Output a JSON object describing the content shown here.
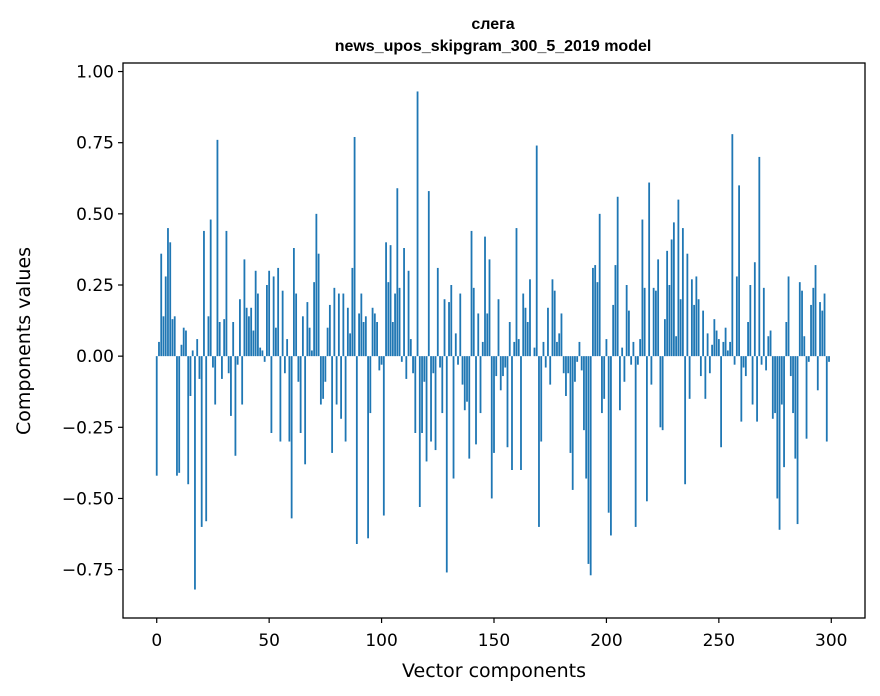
{
  "chart_data": {
    "type": "bar",
    "title": "слега",
    "subtitle": "news_upos_skipgram_300_5_2019 model",
    "xlabel": "Vector components",
    "ylabel": "Components values",
    "xlim": [
      -15,
      315
    ],
    "ylim": [
      -0.92,
      1.03
    ],
    "xticks": [
      0,
      50,
      100,
      150,
      200,
      250,
      300
    ],
    "yticks": [
      -0.75,
      -0.5,
      -0.25,
      0.0,
      0.25,
      0.5,
      0.75,
      1.0
    ],
    "xtick_labels": [
      "0",
      "50",
      "100",
      "150",
      "200",
      "250",
      "300"
    ],
    "ytick_labels": [
      "−0.75",
      "−0.50",
      "−0.25",
      "0.00",
      "0.25",
      "0.50",
      "0.75",
      "1.00"
    ],
    "bar_color": "#1f77b4",
    "grid": false,
    "values": [
      -0.42,
      0.05,
      0.36,
      0.14,
      0.28,
      0.45,
      0.4,
      0.13,
      0.14,
      -0.42,
      -0.41,
      0.04,
      0.1,
      0.09,
      -0.45,
      -0.14,
      0.02,
      -0.82,
      0.06,
      -0.08,
      -0.6,
      0.44,
      -0.58,
      0.14,
      0.48,
      -0.04,
      -0.17,
      0.76,
      0.12,
      -0.08,
      0.13,
      0.44,
      -0.06,
      -0.21,
      0.12,
      -0.35,
      -0.03,
      0.2,
      -0.17,
      0.34,
      0.17,
      0.14,
      0.17,
      0.09,
      0.3,
      0.22,
      0.03,
      0.02,
      -0.02,
      0.25,
      0.3,
      -0.27,
      0.28,
      0.1,
      0.31,
      -0.3,
      0.23,
      -0.06,
      0.06,
      -0.3,
      -0.57,
      0.38,
      0.22,
      -0.09,
      -0.27,
      0.14,
      -0.38,
      0.19,
      0.1,
      0.02,
      0.26,
      0.5,
      0.36,
      -0.17,
      -0.15,
      -0.09,
      0.1,
      0.18,
      -0.34,
      0.24,
      -0.17,
      0.22,
      -0.22,
      0.22,
      -0.3,
      0.17,
      0.08,
      0.31,
      0.77,
      -0.66,
      0.15,
      0.22,
      0.12,
      0.14,
      -0.64,
      -0.2,
      0.17,
      0.15,
      0.12,
      -0.05,
      -0.03,
      -0.56,
      0.4,
      0.26,
      0.39,
      0.12,
      0.22,
      0.59,
      0.24,
      -0.02,
      0.38,
      -0.08,
      0.3,
      0.06,
      -0.06,
      -0.27,
      0.93,
      -0.53,
      -0.27,
      -0.09,
      -0.37,
      0.58,
      -0.3,
      -0.06,
      -0.33,
      0.31,
      -0.04,
      -0.2,
      0.2,
      -0.76,
      0.19,
      0.25,
      -0.43,
      0.08,
      -0.03,
      0.22,
      -0.1,
      -0.19,
      -0.16,
      -0.36,
      0.44,
      0.24,
      -0.31,
      0.15,
      -0.2,
      0.05,
      0.42,
      0.15,
      0.34,
      -0.5,
      -0.34,
      -0.07,
      0.2,
      -0.12,
      -0.07,
      -0.04,
      -0.32,
      0.12,
      -0.4,
      0.05,
      0.45,
      0.06,
      -0.4,
      0.22,
      0.17,
      0.12,
      0.27,
      0.0,
      0.03,
      0.74,
      -0.6,
      -0.3,
      0.05,
      -0.04,
      0.17,
      -0.1,
      0.27,
      0.23,
      0.05,
      0.08,
      0.15,
      -0.06,
      -0.14,
      -0.06,
      -0.34,
      -0.47,
      -0.09,
      -0.02,
      0.05,
      -0.05,
      -0.26,
      -0.43,
      -0.73,
      -0.77,
      0.31,
      0.32,
      0.26,
      0.5,
      -0.2,
      -0.15,
      0.06,
      -0.55,
      -0.63,
      0.18,
      0.32,
      0.56,
      -0.19,
      0.03,
      -0.09,
      0.25,
      0.16,
      -0.03,
      0.05,
      -0.6,
      -0.03,
      0.06,
      0.48,
      0.24,
      -0.51,
      0.61,
      -0.1,
      0.24,
      0.23,
      0.34,
      -0.25,
      -0.26,
      0.13,
      0.37,
      0.25,
      0.41,
      0.47,
      0.07,
      0.55,
      0.2,
      0.45,
      -0.45,
      0.36,
      -0.15,
      0.27,
      0.18,
      0.28,
      0.2,
      -0.07,
      0.16,
      -0.15,
      0.08,
      -0.06,
      0.04,
      0.13,
      0.09,
      0.06,
      -0.32,
      0.05,
      0.1,
      0.02,
      0.05,
      0.78,
      -0.03,
      0.28,
      0.6,
      -0.23,
      -0.04,
      -0.07,
      0.12,
      0.25,
      -0.17,
      0.33,
      -0.23,
      0.7,
      -0.03,
      0.24,
      -0.05,
      0.07,
      0.09,
      -0.22,
      -0.2,
      -0.5,
      -0.61,
      -0.17,
      -0.39,
      0.12,
      0.28,
      -0.07,
      -0.2,
      -0.36,
      -0.59,
      0.26,
      0.23,
      0.07,
      -0.29,
      -0.02,
      0.18,
      0.24,
      0.32,
      -0.12,
      0.19,
      0.16,
      0.22,
      -0.3,
      -0.02
    ]
  }
}
